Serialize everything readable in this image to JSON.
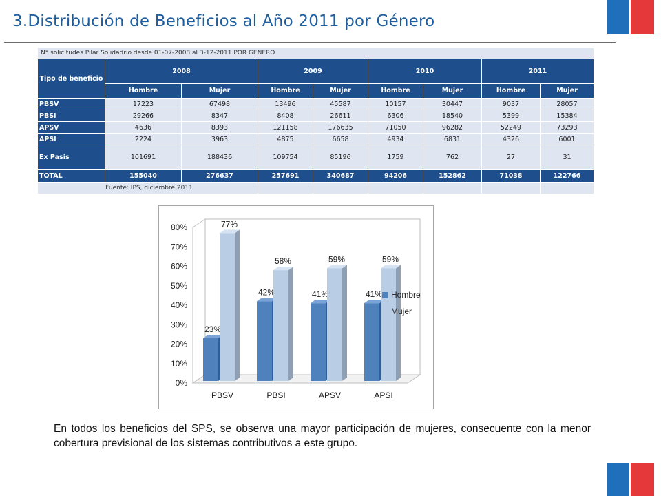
{
  "title": "3.Distribución de Beneficios al Año 2011 por Género",
  "colors": {
    "title": "#1f5fa0",
    "header": "#1f4e8c",
    "cell": "#dfe6f2",
    "hombre": "#4f81bd",
    "mujer": "#b9cde5",
    "flag_blue": "#1f6fba",
    "flag_red": "#e5383b"
  },
  "table": {
    "caption": "N° solicitudes Pilar Solidadrio desde 01-07-2008 al 3-12-2011 POR GENERO",
    "row_header": "Tipo de beneficio",
    "years": [
      "2008",
      "2009",
      "2010",
      "2011"
    ],
    "genders": [
      "Hombre",
      "Mujer",
      "Hombre",
      "Mujer",
      "Hombre",
      "Mujer",
      "Hombre",
      "Mujer"
    ],
    "rows": [
      {
        "label": "PBSV",
        "values": [
          "17223",
          "67498",
          "13496",
          "45587",
          "10157",
          "30447",
          "9037",
          "28057"
        ]
      },
      {
        "label": "PBSI",
        "values": [
          "29266",
          "8347",
          "8408",
          "26611",
          "6306",
          "18540",
          "5399",
          "15384"
        ]
      },
      {
        "label": "APSV",
        "values": [
          "4636",
          "8393",
          "121158",
          "176635",
          "71050",
          "96282",
          "52249",
          "73293"
        ]
      },
      {
        "label": "APSI",
        "values": [
          "2224",
          "3963",
          "4875",
          "6658",
          "4934",
          "6831",
          "4326",
          "6001"
        ]
      },
      {
        "label": "Ex Pasis",
        "values": [
          "101691",
          "188436",
          "109754",
          "85196",
          "1759",
          "762",
          "27",
          "31"
        ]
      }
    ],
    "total": {
      "label": "TOTAL",
      "values": [
        "155040",
        "276637",
        "257691",
        "340687",
        "94206",
        "152862",
        "71038",
        "122766"
      ]
    },
    "source": "Fuente: IPS, diciembre 2011"
  },
  "chart_data": {
    "type": "bar",
    "categories": [
      "PBSV",
      "PBSI",
      "APSV",
      "APSI"
    ],
    "series": [
      {
        "name": "Hombre",
        "values": [
          23,
          42,
          41,
          41
        ],
        "labels": [
          "23%",
          "42%",
          "41%",
          "41%"
        ],
        "color": "#4f81bd"
      },
      {
        "name": "Mujer",
        "values": [
          77,
          58,
          59,
          59
        ],
        "labels": [
          "77%",
          "58%",
          "59%",
          "59%"
        ],
        "color": "#b9cde5"
      }
    ],
    "ylim": [
      0,
      80
    ],
    "yticks": [
      "0%",
      "10%",
      "20%",
      "30%",
      "40%",
      "50%",
      "60%",
      "70%",
      "80%"
    ],
    "grid": false,
    "legend_position": "right",
    "three_d": true
  },
  "paragraph": "En todos los beneficios del SPS, se observa una mayor participación de mujeres, consecuente con la menor cobertura previsional de los sistemas contributivos a este grupo."
}
